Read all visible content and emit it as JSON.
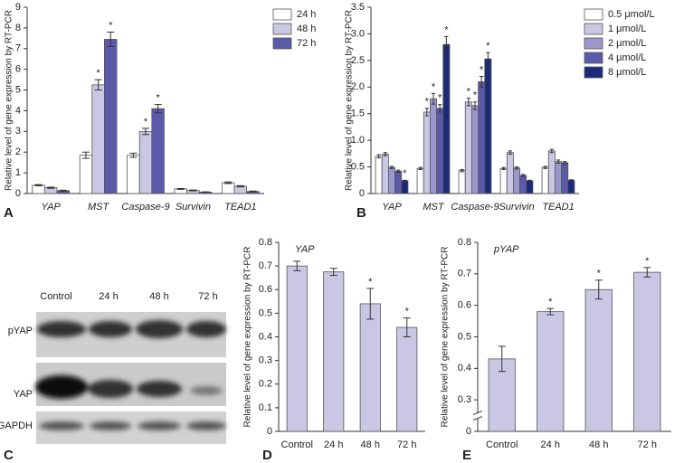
{
  "chart_data": [
    {
      "type": "bar",
      "panel_label": "A",
      "y_label": "Relative level of gene expression by RT-PCR",
      "italic_categories": true,
      "categories": [
        "YAP",
        "MST",
        "Caspase-9",
        "Survivin",
        "TEAD1"
      ],
      "ylim": [
        0,
        9
      ],
      "yticks": [
        0,
        1,
        2,
        3,
        4,
        5,
        6,
        7,
        8,
        9
      ],
      "series": [
        {
          "name": "24 h",
          "color": "#ffffff",
          "values": [
            0.4,
            1.85,
            1.85,
            0.22,
            0.52
          ],
          "errors": [
            0.03,
            0.15,
            0.1,
            0.02,
            0.04
          ],
          "markers": [
            null,
            null,
            null,
            null,
            null
          ]
        },
        {
          "name": "48 h",
          "color": "#c9c7e3",
          "values": [
            0.28,
            5.25,
            3.0,
            0.15,
            0.35
          ],
          "errors": [
            0.03,
            0.25,
            0.15,
            0.02,
            0.03
          ],
          "markers": [
            null,
            "*",
            "*",
            null,
            null
          ]
        },
        {
          "name": "72 h",
          "color": "#5b59a9",
          "values": [
            0.14,
            7.45,
            4.1,
            0.07,
            0.1
          ],
          "errors": [
            0.02,
            0.35,
            0.2,
            0.01,
            0.02
          ],
          "markers": [
            null,
            "*",
            "*",
            null,
            null
          ]
        }
      ]
    },
    {
      "type": "bar",
      "panel_label": "B",
      "y_label": "Relative level of gene expression by RT-PCR",
      "italic_categories": true,
      "categories": [
        "YAP",
        "MST",
        "Caspase-9",
        "Survivin",
        "TEAD1"
      ],
      "ylim": [
        0,
        3.5
      ],
      "yticks": [
        0,
        0.5,
        {
          "value": 1,
          "label": "1.0"
        },
        1.5,
        {
          "value": 2,
          "label": "2.0"
        },
        2.5,
        {
          "value": 3,
          "label": "3.0"
        },
        3.5
      ],
      "series": [
        {
          "name": "0.5 μmol/L",
          "color": "#ffffff",
          "values": [
            0.7,
            0.47,
            0.43,
            0.47,
            0.49
          ],
          "errors": [
            0.03,
            0.02,
            0.02,
            0.02,
            0.02
          ],
          "markers": [
            null,
            null,
            null,
            null,
            null
          ]
        },
        {
          "name": "1 μmol/L",
          "color": "#c9c7e3",
          "values": [
            0.74,
            1.53,
            1.72,
            0.77,
            0.8
          ],
          "errors": [
            0.03,
            0.07,
            0.07,
            0.03,
            0.03
          ],
          "markers": [
            null,
            "*",
            "*",
            null,
            null
          ]
        },
        {
          "name": "2 μmol/L",
          "color": "#9997cc",
          "values": [
            0.49,
            1.78,
            1.65,
            0.48,
            0.6
          ],
          "errors": [
            0.02,
            0.1,
            0.07,
            0.02,
            0.03
          ],
          "markers": [
            null,
            "*",
            "*",
            null,
            null
          ]
        },
        {
          "name": "4 μmol/L",
          "color": "#5b59a9",
          "values": [
            0.42,
            1.6,
            2.1,
            0.34,
            0.58
          ],
          "errors": [
            0.02,
            0.07,
            0.1,
            0.02,
            0.02
          ],
          "markers": [
            null,
            "*",
            "*",
            null,
            null
          ]
        },
        {
          "name": "8 μmol/L",
          "color": "#1b2b7a",
          "values": [
            0.24,
            2.8,
            2.53,
            0.24,
            0.25
          ],
          "errors": [
            0.01,
            0.15,
            0.12,
            0.01,
            0.01
          ],
          "markers": [
            "*",
            "*",
            "*",
            null,
            null
          ]
        }
      ]
    },
    {
      "type": "bar",
      "panel_label": "D",
      "title": "YAP",
      "y_label": "Relative level of gene expression by RT-PCR",
      "categories": [
        "Control",
        "24 h",
        "48 h",
        "72 h"
      ],
      "ylim": [
        0,
        0.8
      ],
      "yticks": [
        0,
        0.1,
        0.2,
        0.3,
        0.4,
        0.5,
        0.6,
        0.7,
        0.8
      ],
      "series": [
        {
          "color": "#c9c7e3",
          "values": [
            0.7,
            0.675,
            0.54,
            0.44
          ],
          "errors": [
            0.02,
            0.015,
            0.065,
            0.04
          ],
          "markers": [
            null,
            null,
            "*",
            "*"
          ]
        }
      ]
    },
    {
      "type": "bar",
      "panel_label": "E",
      "title": "pYAP",
      "y_label": "Relative level of gene expression by RT-PCR",
      "categories": [
        "Control",
        "24 h",
        "48 h",
        "72 h"
      ],
      "ylim": [
        0,
        0.8
      ],
      "ybreak": [
        0,
        0.3
      ],
      "yticks": [
        0,
        0.3,
        0.4,
        0.5,
        0.6,
        0.7,
        0.8
      ],
      "series": [
        {
          "color": "#c9c7e3",
          "values": [
            0.43,
            0.58,
            0.65,
            0.705
          ],
          "errors": [
            0.04,
            0.01,
            0.03,
            0.015
          ],
          "markers": [
            null,
            "*",
            "*",
            "*"
          ]
        }
      ]
    }
  ],
  "blot": {
    "panel_label": "C",
    "lanes": [
      "Control",
      "24 h",
      "48 h",
      "72 h"
    ],
    "rows": [
      "pYAP",
      "YAP",
      "GAPDH"
    ]
  }
}
